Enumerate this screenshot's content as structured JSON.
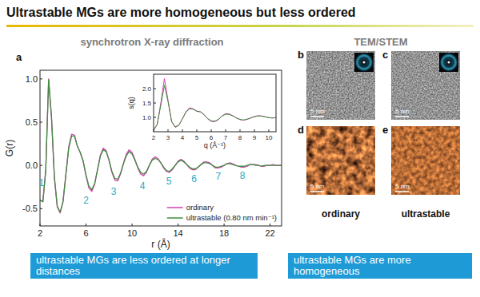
{
  "title": "Ultrastable MGs are more homogeneous but less ordered",
  "xrd": {
    "panel": "a",
    "heading": "synchrotron X-ray diffraction",
    "caption": "ultrastable MGs are less ordered at longer distances"
  },
  "tem": {
    "heading": "TEM/STEM",
    "columns": [
      "ordinary",
      "ultrastable"
    ],
    "rows": [
      [
        {
          "panel": "b",
          "scale_bar": "5 nm"
        },
        {
          "panel": "c",
          "scale_bar": "5 nm"
        }
      ],
      [
        {
          "panel": "d",
          "scale_bar": "5 nm"
        },
        {
          "panel": "e",
          "scale_bar": "5 nm"
        }
      ]
    ],
    "caption": "ultrastable MGs are more homogeneous"
  },
  "chart_data": [
    {
      "type": "line",
      "x_label": "r (Å)",
      "y_label": "G(r)",
      "xlim": [
        2,
        23
      ],
      "ylim": [
        -0.7,
        1.1
      ],
      "xticks": [
        2,
        6,
        10,
        14,
        18,
        22
      ],
      "yticks": [
        -0.5,
        {
          "value": 0,
          "label": "0.0"
        },
        0.5,
        {
          "value": 1,
          "label": "1.0"
        }
      ],
      "legend": "lower right",
      "x": [
        2,
        2.25,
        2.5,
        2.75,
        3,
        3.25,
        3.5,
        3.75,
        4,
        4.25,
        4.5,
        4.75,
        5,
        5.25,
        5.5,
        5.75,
        6,
        6.25,
        6.5,
        6.75,
        7,
        7.25,
        7.5,
        7.75,
        8,
        8.25,
        8.5,
        8.75,
        9,
        9.25,
        9.5,
        9.75,
        10,
        10.25,
        10.5,
        10.75,
        11,
        11.25,
        11.5,
        11.75,
        12,
        12.25,
        12.5,
        12.75,
        13,
        13.25,
        13.5,
        13.75,
        14,
        14.25,
        14.5,
        14.75,
        15,
        15.25,
        15.5,
        15.75,
        16,
        16.25,
        16.5,
        16.75,
        17,
        17.25,
        17.5,
        17.75,
        18,
        18.25,
        18.5,
        18.75,
        19,
        19.25,
        19.5,
        19.75,
        20,
        20.25,
        20.5,
        20.75,
        21,
        21.25,
        21.5,
        21.75,
        22,
        22.25,
        22.5,
        22.75,
        23
      ],
      "series": [
        {
          "name": "ordinary",
          "color": "#d63fb0",
          "values": [
            -0.4,
            -0.42,
            -0.05,
            1.0,
            0.55,
            -0.15,
            -0.48,
            -0.55,
            -0.42,
            -0.1,
            0.22,
            0.36,
            0.35,
            0.22,
            0.15,
            0.05,
            -0.12,
            -0.26,
            -0.3,
            -0.22,
            -0.05,
            0.12,
            0.2,
            0.17,
            0.06,
            -0.08,
            -0.17,
            -0.18,
            -0.1,
            0.02,
            0.13,
            0.18,
            0.15,
            0.07,
            -0.03,
            -0.1,
            -0.12,
            -0.08,
            0.0,
            0.07,
            0.1,
            0.08,
            0.03,
            -0.03,
            -0.07,
            -0.08,
            -0.05,
            0.0,
            0.05,
            0.07,
            0.05,
            0.01,
            -0.03,
            -0.05,
            -0.05,
            -0.02,
            0.01,
            0.04,
            0.04,
            0.03,
            0.0,
            -0.03,
            -0.03,
            -0.02,
            0.0,
            0.02,
            0.03,
            0.02,
            0.0,
            -0.01,
            -0.02,
            -0.02,
            -0.01,
            0.01,
            0.01,
            0.01,
            0.0,
            -0.01,
            -0.01,
            0.0,
            0.0,
            0.01,
            0.0,
            0.0,
            0.0
          ]
        },
        {
          "name": "ultrastable (0.80 nm min⁻¹)",
          "color": "#3f8f3f",
          "values": [
            -0.4,
            -0.42,
            -0.06,
            0.99,
            0.56,
            -0.13,
            -0.47,
            -0.54,
            -0.42,
            -0.11,
            0.2,
            0.34,
            0.34,
            0.22,
            0.15,
            0.05,
            -0.11,
            -0.24,
            -0.28,
            -0.21,
            -0.05,
            0.11,
            0.18,
            0.16,
            0.06,
            -0.07,
            -0.15,
            -0.16,
            -0.09,
            0.02,
            0.11,
            0.16,
            0.13,
            0.06,
            -0.02,
            -0.08,
            -0.1,
            -0.07,
            0.0,
            0.06,
            0.08,
            0.07,
            0.03,
            -0.02,
            -0.06,
            -0.07,
            -0.04,
            0.0,
            0.04,
            0.06,
            0.04,
            0.01,
            -0.02,
            -0.04,
            -0.04,
            -0.02,
            0.01,
            0.03,
            0.03,
            0.02,
            0.0,
            -0.02,
            -0.02,
            -0.01,
            0.0,
            0.02,
            0.02,
            0.01,
            0.0,
            -0.01,
            -0.01,
            -0.01,
            0.0,
            0.01,
            0.01,
            0.0,
            0.0,
            -0.01,
            0.0,
            0.0,
            0.0,
            0.0,
            0.0,
            0.0,
            0.0
          ]
        }
      ],
      "annotations": [
        {
          "text": "1",
          "x": 2.12,
          "y": -0.2
        },
        {
          "text": "2",
          "x": 6.0,
          "y": -0.4
        },
        {
          "text": "3",
          "x": 8.4,
          "y": -0.3
        },
        {
          "text": "4",
          "x": 10.9,
          "y": -0.24
        },
        {
          "text": "5",
          "x": 13.2,
          "y": -0.18
        },
        {
          "text": "6",
          "x": 15.4,
          "y": -0.15
        },
        {
          "text": "7",
          "x": 17.5,
          "y": -0.13
        },
        {
          "text": "8",
          "x": 19.6,
          "y": -0.12
        }
      ]
    },
    {
      "type": "line",
      "x_label": "q (Å⁻¹)",
      "y_label": "s(q)",
      "xlim": [
        2,
        10.5
      ],
      "ylim": [
        0.5,
        2.5
      ],
      "xticks": [
        2,
        3,
        4,
        5,
        6,
        7,
        8,
        9,
        10
      ],
      "yticks": [
        {
          "value": 1,
          "label": "1.0"
        },
        1.5,
        {
          "value": 2,
          "label": "2.0"
        }
      ],
      "x": [
        2,
        2.25,
        2.5,
        2.75,
        3,
        3.25,
        3.5,
        3.75,
        4,
        4.25,
        4.5,
        4.75,
        5,
        5.25,
        5.5,
        5.75,
        6,
        6.25,
        6.5,
        6.75,
        7,
        7.25,
        7.5,
        7.75,
        8,
        8.25,
        8.5,
        8.75,
        9,
        9.25,
        9.5,
        9.75,
        10,
        10.25,
        10.5
      ],
      "series": [
        {
          "color": "#d63fb0",
          "values": [
            0.55,
            0.75,
            1.5,
            2.35,
            1.6,
            0.85,
            0.65,
            0.72,
            0.95,
            1.2,
            1.33,
            1.3,
            1.22,
            1.2,
            1.1,
            0.95,
            0.86,
            0.85,
            0.92,
            1.05,
            1.13,
            1.12,
            1.06,
            0.98,
            0.92,
            0.9,
            0.93,
            0.98,
            1.03,
            1.06,
            1.05,
            1.02,
            0.99,
            0.98,
            0.99
          ]
        },
        {
          "color": "#3f8f3f",
          "values": [
            0.56,
            0.76,
            1.42,
            2.12,
            1.55,
            0.86,
            0.67,
            0.73,
            0.95,
            1.18,
            1.3,
            1.28,
            1.21,
            1.19,
            1.09,
            0.96,
            0.88,
            0.87,
            0.93,
            1.04,
            1.11,
            1.1,
            1.05,
            0.98,
            0.93,
            0.91,
            0.94,
            0.98,
            1.02,
            1.05,
            1.04,
            1.02,
            0.99,
            0.98,
            0.99
          ]
        }
      ]
    }
  ]
}
